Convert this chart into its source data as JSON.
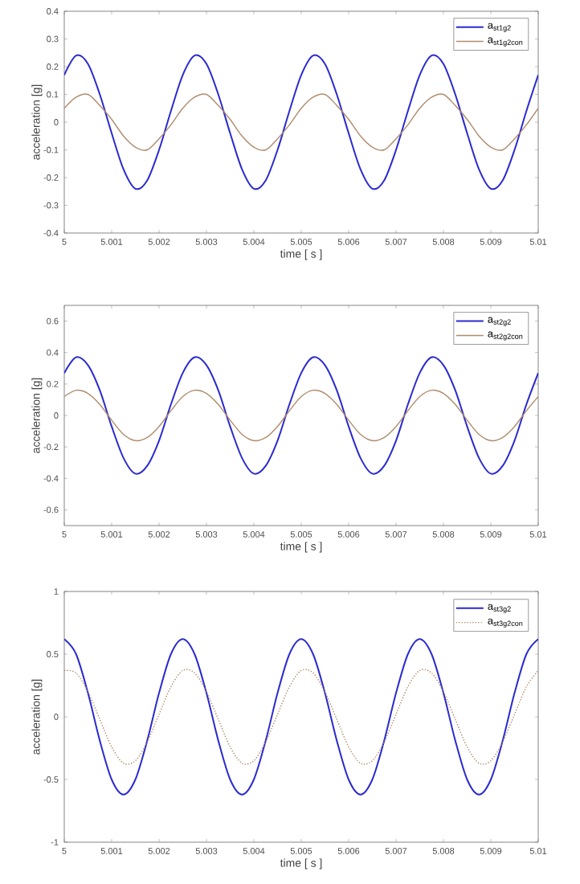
{
  "chart_data": [
    {
      "type": "line",
      "xlabel": "time [ s ]",
      "ylabel": "acceleration [g]",
      "legend": "top right",
      "grid": false,
      "marker": "none",
      "x": [
        5,
        5.00025,
        5.0005,
        5.00075,
        5.001,
        5.00125,
        5.0015,
        5.00175,
        5.002,
        5.00225,
        5.0025,
        5.00275,
        5.003,
        5.00325,
        5.0035,
        5.00375,
        5.004,
        5.00425,
        5.0045,
        5.00475,
        5.005,
        5.00525,
        5.0055,
        5.00575,
        5.006,
        5.00625,
        5.0065,
        5.00675,
        5.007,
        5.00725,
        5.0075,
        5.00775,
        5.008,
        5.00825,
        5.0085,
        5.00875,
        5.009,
        5.00925,
        5.0095,
        5.00975,
        5.01
      ],
      "xlim": [
        5,
        5.01
      ],
      "xticks": [
        5,
        5.001,
        5.002,
        5.003,
        5.004,
        5.005,
        5.006,
        5.007,
        5.008,
        5.009,
        5.01
      ],
      "ylim": [
        -0.4,
        0.4
      ],
      "yticks": [
        -0.4,
        -0.3,
        -0.2,
        -0.1,
        0,
        0.1,
        0.2,
        0.3,
        0.4
      ],
      "series": [
        {
          "name": "a$_{st1g2}$",
          "color": "#2a2ad0",
          "line_style": "solid",
          "values": [
            0.17,
            0.24,
            0.21,
            0.1,
            -0.04,
            -0.17,
            -0.24,
            -0.21,
            -0.1,
            0.04,
            0.17,
            0.24,
            0.21,
            0.1,
            -0.04,
            -0.17,
            -0.24,
            -0.21,
            -0.1,
            0.04,
            0.17,
            0.24,
            0.21,
            0.1,
            -0.04,
            -0.17,
            -0.24,
            -0.21,
            -0.1,
            0.04,
            0.17,
            0.24,
            0.21,
            0.1,
            -0.04,
            -0.17,
            -0.24,
            -0.21,
            -0.1,
            0.04,
            0.17
          ]
        },
        {
          "name": "a$_{st1g2con}$",
          "color": "#b08c6c",
          "line_style": "solid",
          "values": [
            0.05,
            0.09,
            0.1,
            0.06,
            0.01,
            -0.05,
            -0.09,
            -0.1,
            -0.06,
            -0.01,
            0.05,
            0.09,
            0.1,
            0.06,
            0.01,
            -0.05,
            -0.09,
            -0.1,
            -0.06,
            -0.01,
            0.05,
            0.09,
            0.1,
            0.06,
            0.01,
            -0.05,
            -0.09,
            -0.1,
            -0.06,
            -0.01,
            0.05,
            0.09,
            0.1,
            0.06,
            0.01,
            -0.05,
            -0.09,
            -0.1,
            -0.06,
            -0.01,
            0.05
          ]
        }
      ]
    },
    {
      "type": "line",
      "xlabel": "time [ s ]",
      "ylabel": "acceleration [g]",
      "legend": "top right",
      "grid": false,
      "marker": "none",
      "x": [
        5,
        5.00025,
        5.0005,
        5.00075,
        5.001,
        5.00125,
        5.0015,
        5.00175,
        5.002,
        5.00225,
        5.0025,
        5.00275,
        5.003,
        5.00325,
        5.0035,
        5.00375,
        5.004,
        5.00425,
        5.0045,
        5.00475,
        5.005,
        5.00525,
        5.0055,
        5.00575,
        5.006,
        5.00625,
        5.0065,
        5.00675,
        5.007,
        5.00725,
        5.0075,
        5.00775,
        5.008,
        5.00825,
        5.0085,
        5.00875,
        5.009,
        5.00925,
        5.0095,
        5.00975,
        5.01
      ],
      "xlim": [
        5,
        5.01
      ],
      "xticks": [
        5,
        5.001,
        5.002,
        5.003,
        5.004,
        5.005,
        5.006,
        5.007,
        5.008,
        5.009,
        5.01
      ],
      "ylim": [
        -0.7,
        0.7
      ],
      "yticks": [
        -0.6,
        -0.4,
        -0.2,
        0,
        0.2,
        0.4,
        0.6
      ],
      "series": [
        {
          "name": "a$_{st2g2}$",
          "color": "#2a2ad0",
          "line_style": "solid",
          "values": [
            0.27,
            0.37,
            0.32,
            0.16,
            -0.07,
            -0.27,
            -0.37,
            -0.32,
            -0.16,
            0.07,
            0.27,
            0.37,
            0.32,
            0.16,
            -0.07,
            -0.27,
            -0.37,
            -0.32,
            -0.16,
            0.07,
            0.27,
            0.37,
            0.32,
            0.16,
            -0.07,
            -0.27,
            -0.37,
            -0.32,
            -0.16,
            0.07,
            0.27,
            0.37,
            0.32,
            0.16,
            -0.07,
            -0.27,
            -0.37,
            -0.32,
            -0.16,
            0.07,
            0.27
          ]
        },
        {
          "name": "a$_{st2g2con}$",
          "color": "#b08c6c",
          "line_style": "solid",
          "values": [
            0.12,
            0.16,
            0.14,
            0.07,
            -0.03,
            -0.12,
            -0.16,
            -0.14,
            -0.07,
            0.03,
            0.12,
            0.16,
            0.14,
            0.07,
            -0.03,
            -0.12,
            -0.16,
            -0.14,
            -0.07,
            0.03,
            0.12,
            0.16,
            0.14,
            0.07,
            -0.03,
            -0.12,
            -0.16,
            -0.14,
            -0.07,
            0.03,
            0.12,
            0.16,
            0.14,
            0.07,
            -0.03,
            -0.12,
            -0.16,
            -0.14,
            -0.07,
            0.03,
            0.12
          ]
        }
      ]
    },
    {
      "type": "line",
      "xlabel": "time [ s ]",
      "ylabel": "acceleration [g]",
      "legend": "top right",
      "grid": false,
      "marker": "none",
      "x": [
        5,
        5.00025,
        5.0005,
        5.00075,
        5.001,
        5.00125,
        5.0015,
        5.00175,
        5.002,
        5.00225,
        5.0025,
        5.00275,
        5.003,
        5.00325,
        5.0035,
        5.00375,
        5.004,
        5.00425,
        5.0045,
        5.00475,
        5.005,
        5.00525,
        5.0055,
        5.00575,
        5.006,
        5.00625,
        5.0065,
        5.00675,
        5.007,
        5.00725,
        5.0075,
        5.00775,
        5.008,
        5.00825,
        5.0085,
        5.00875,
        5.009,
        5.00925,
        5.0095,
        5.00975,
        5.01
      ],
      "xlim": [
        5,
        5.01
      ],
      "xticks": [
        5,
        5.001,
        5.002,
        5.003,
        5.004,
        5.005,
        5.006,
        5.007,
        5.008,
        5.009,
        5.01
      ],
      "ylim": [
        -1,
        1
      ],
      "yticks": [
        -1,
        -0.5,
        0,
        0.5,
        1
      ],
      "series": [
        {
          "name": "a$_{st3g2}$",
          "color": "#2a2ad0",
          "line_style": "solid",
          "values": [
            0.62,
            0.5,
            0.19,
            -0.19,
            -0.5,
            -0.62,
            -0.5,
            -0.19,
            0.19,
            0.5,
            0.62,
            0.5,
            0.19,
            -0.19,
            -0.5,
            -0.62,
            -0.5,
            -0.19,
            0.19,
            0.5,
            0.62,
            0.5,
            0.19,
            -0.19,
            -0.5,
            -0.62,
            -0.5,
            -0.19,
            0.19,
            0.5,
            0.62,
            0.5,
            0.19,
            -0.19,
            -0.5,
            -0.62,
            -0.5,
            -0.19,
            0.19,
            0.5,
            0.62
          ]
        },
        {
          "name": "a$_{st3g2con}$",
          "color": "#b08c6c",
          "line_style": "dotted",
          "values": [
            0.37,
            0.35,
            0.2,
            -0.02,
            -0.24,
            -0.37,
            -0.35,
            -0.2,
            0.02,
            0.24,
            0.37,
            0.35,
            0.2,
            -0.02,
            -0.24,
            -0.37,
            -0.35,
            -0.2,
            0.02,
            0.24,
            0.37,
            0.35,
            0.2,
            -0.02,
            -0.24,
            -0.37,
            -0.35,
            -0.2,
            0.02,
            0.24,
            0.37,
            0.35,
            0.2,
            -0.02,
            -0.24,
            -0.37,
            -0.35,
            -0.2,
            0.02,
            0.24,
            0.37
          ]
        }
      ]
    }
  ]
}
